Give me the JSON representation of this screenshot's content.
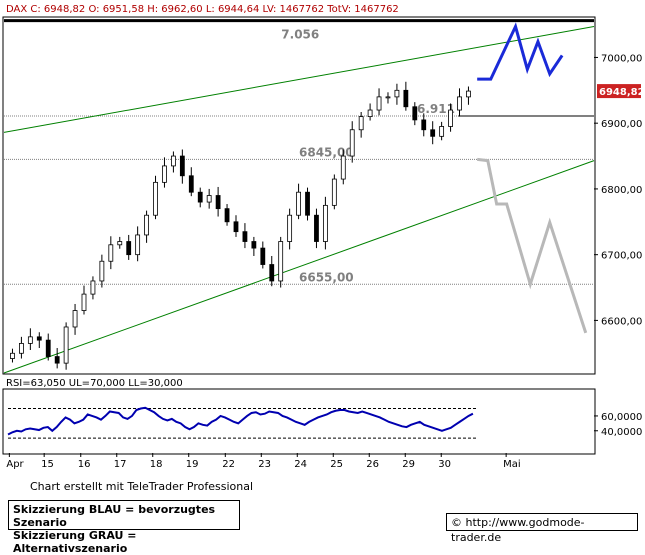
{
  "chart_data": [
    {
      "type": "candlestick",
      "header": "DAX C: 6948,82 O: 6951,58 H: 6962,60 L: 6944,64 LV: 1467762 TotV: 1467762",
      "ylim": [
        6520,
        7060
      ],
      "yticks": [
        6600,
        6700,
        6800,
        6900,
        7000
      ],
      "ytick_labels": [
        "6600,00",
        "6700,00",
        "6800,00",
        "6900,00",
        "7000,00"
      ],
      "last_price_label": "6948,82",
      "x_labels": [
        "Apr",
        "15",
        "16",
        "17",
        "18",
        "19",
        "22",
        "23",
        "24",
        "25",
        "26",
        "29",
        "30",
        "Mai"
      ],
      "close_series": [
        6550,
        6565,
        6575,
        6570,
        6545,
        6535,
        6590,
        6615,
        6640,
        6660,
        6690,
        6715,
        6720,
        6700,
        6730,
        6760,
        6810,
        6835,
        6850,
        6820,
        6795,
        6780,
        6790,
        6770,
        6750,
        6735,
        6720,
        6710,
        6685,
        6660,
        6720,
        6760,
        6795,
        6760,
        6720,
        6775,
        6815,
        6850,
        6890,
        6910,
        6920,
        6940,
        6940,
        6950,
        6925,
        6905,
        6890,
        6880,
        6895,
        6920,
        6940,
        6948.82
      ],
      "levels": [
        {
          "value": 7056,
          "label": "7.056"
        },
        {
          "value": 6911,
          "label": "6.911"
        },
        {
          "value": 6845,
          "label": "6845,00"
        },
        {
          "value": 6655,
          "label": "6655,00"
        }
      ],
      "trend_lines": [
        {
          "name": "upper-trendline",
          "from": [
            0,
            6886
          ],
          "to": [
            100,
            7047
          ]
        },
        {
          "name": "lower-trendline",
          "from": [
            0,
            6520
          ],
          "to": [
            100,
            6843
          ]
        }
      ],
      "scenario_blue": [
        [
          80.2,
          6967
        ],
        [
          82.5,
          6967
        ],
        [
          86.7,
          7047
        ],
        [
          88.7,
          6982
        ],
        [
          90.5,
          7024
        ],
        [
          92.5,
          6975
        ],
        [
          94.6,
          7003
        ]
      ],
      "scenario_grey": [
        [
          80.2,
          6845
        ],
        [
          82.0,
          6843
        ],
        [
          83.5,
          6777
        ],
        [
          85.2,
          6777
        ],
        [
          89.2,
          6655
        ],
        [
          92.5,
          6749
        ],
        [
          98.6,
          6581
        ]
      ]
    },
    {
      "type": "line",
      "header": "RSI=63,050 UL=70,000 LL=30,000",
      "ylim": [
        10,
        95
      ],
      "yticks": [
        40,
        60
      ],
      "ytick_labels": [
        "40,0000",
        "60,0000"
      ],
      "upper_limit": 70,
      "lower_limit": 30,
      "values": [
        35,
        38,
        40,
        39,
        42,
        43,
        42,
        41,
        44,
        45,
        40,
        45,
        52,
        58,
        55,
        50,
        52,
        55,
        62,
        60,
        58,
        55,
        60,
        66,
        65,
        64,
        58,
        56,
        60,
        68,
        70,
        71,
        68,
        65,
        60,
        56,
        54,
        56,
        52,
        50,
        45,
        42,
        45,
        50,
        48,
        47,
        52,
        55,
        60,
        58,
        55,
        52,
        50,
        55,
        60,
        64,
        65,
        62,
        63,
        66,
        65,
        64,
        60,
        58,
        55,
        52,
        50,
        48,
        52,
        55,
        58,
        60,
        62,
        65,
        67,
        68,
        68,
        66,
        65,
        64,
        66,
        64,
        62,
        60,
        58,
        55,
        52,
        50,
        48,
        46,
        45,
        48,
        50,
        52,
        48,
        46,
        44,
        42,
        40,
        42,
        44,
        48,
        52,
        56,
        60,
        63.05
      ]
    }
  ],
  "footer": {
    "credit": "Chart erstellt mit TeleTrader Professional",
    "legend_blue": "Skizzierung BLAU = bevorzugtes Szenario",
    "legend_grey": "Skizzierung GRAU = Alternativszenario",
    "source": "© http://www.godmode-trader.de"
  },
  "colors": {
    "candle": "#000000",
    "trendline": "#008000",
    "scenario_blue": "#1a2ad8",
    "scenario_grey": "#b8b8b8",
    "rsi_line": "#0000b0",
    "level_text": "#808080",
    "price_badge": "#cc2222"
  }
}
